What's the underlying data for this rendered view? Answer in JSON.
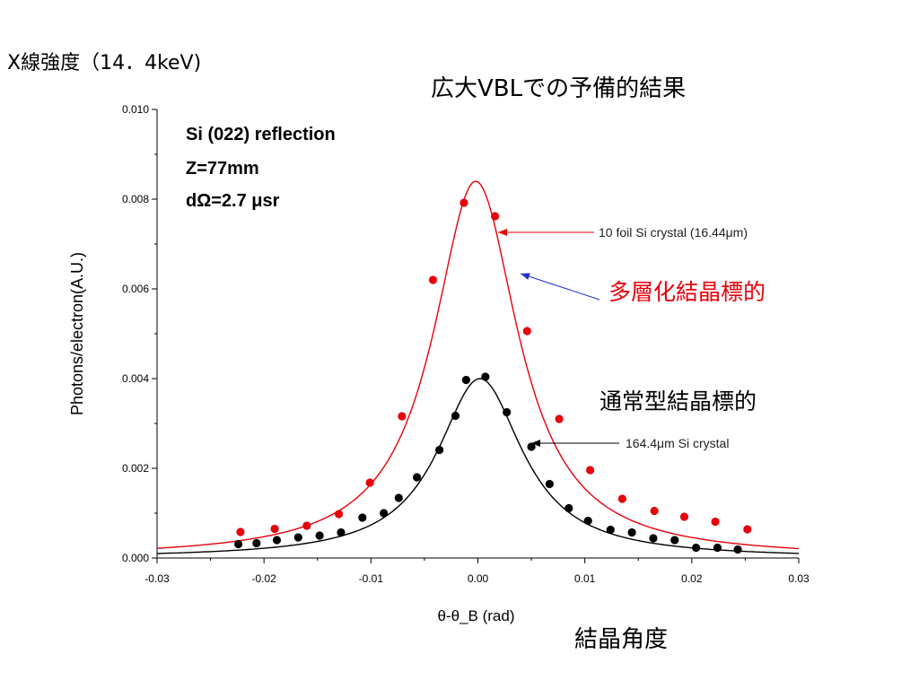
{
  "page": {
    "title_left": "X線強度（14．4keV)",
    "title_center": "広大VBLでの予備的結果",
    "label_multilayer": "多層化結晶標的",
    "label_normal": "通常型結晶標的",
    "label_angle": "結晶角度"
  },
  "colors": {
    "red": "#e8000b",
    "black": "#000000",
    "blue_arrow": "#1f2fd0"
  },
  "chart_data": {
    "type": "scatter",
    "xlabel": "θ-θ_B (rad)",
    "ylabel": "Photons/electron(A.U.)",
    "xlim": [
      -0.03,
      0.03
    ],
    "ylim": [
      0.0,
      0.01
    ],
    "x_ticks": [
      "-0.03",
      "-0.02",
      "-0.01",
      "0.00",
      "0.01",
      "0.02",
      "0.03"
    ],
    "y_ticks": [
      "0.000",
      "0.002",
      "0.004",
      "0.006",
      "0.008",
      "0.010"
    ],
    "grid": false,
    "inset_text": [
      "Si (022) reflection",
      "Z=77mm",
      "dΩ=2.7 μsr"
    ],
    "annotations": [
      "10 foil Si crystal (16.44μm)",
      "164.4μm Si crystal"
    ],
    "series": [
      {
        "name": "10 foil Si crystal (16.44μm)",
        "color": "#e8000b",
        "points": [
          [
            -0.0222,
            0.00058
          ],
          [
            -0.019,
            0.00065
          ],
          [
            -0.016,
            0.00072
          ],
          [
            -0.013,
            0.00098
          ],
          [
            -0.0101,
            0.00168
          ],
          [
            -0.0071,
            0.00316
          ],
          [
            -0.0042,
            0.0062
          ],
          [
            -0.0013,
            0.00792
          ],
          [
            0.0016,
            0.00762
          ],
          [
            0.0046,
            0.00506
          ],
          [
            0.0076,
            0.0031
          ],
          [
            0.0105,
            0.00196
          ],
          [
            0.0135,
            0.00132
          ],
          [
            0.0165,
            0.00105
          ],
          [
            0.0193,
            0.00092
          ],
          [
            0.0222,
            0.00081
          ],
          [
            0.0252,
            0.00064
          ]
        ],
        "fit": {
          "center": -0.0002,
          "peak": 0.0084,
          "fwhm": 0.0097
        }
      },
      {
        "name": "164.4μm Si crystal",
        "color": "#000000",
        "points": [
          [
            -0.0224,
            0.00031
          ],
          [
            -0.0207,
            0.00033
          ],
          [
            -0.0188,
            0.0004
          ],
          [
            -0.0168,
            0.00046
          ],
          [
            -0.0148,
            0.0005
          ],
          [
            -0.0128,
            0.00057
          ],
          [
            -0.0108,
            0.0009
          ],
          [
            -0.0088,
            0.001
          ],
          [
            -0.0074,
            0.00134
          ],
          [
            -0.0057,
            0.0018
          ],
          [
            -0.0036,
            0.00241
          ],
          [
            -0.0021,
            0.00317
          ],
          [
            -0.0011,
            0.00397
          ],
          [
            0.0007,
            0.00404
          ],
          [
            0.0027,
            0.00325
          ],
          [
            0.005,
            0.00248
          ],
          [
            0.0067,
            0.00165
          ],
          [
            0.0085,
            0.00111
          ],
          [
            0.0103,
            0.00083
          ],
          [
            0.0124,
            0.00063
          ],
          [
            0.0144,
            0.00057
          ],
          [
            0.0164,
            0.00044
          ],
          [
            0.0184,
            0.0004
          ],
          [
            0.0204,
            0.00023
          ],
          [
            0.0224,
            0.00023
          ],
          [
            0.0243,
            0.00019
          ]
        ],
        "fit": {
          "center": 0.0002,
          "peak": 0.004,
          "fwhm": 0.0097
        }
      }
    ]
  }
}
